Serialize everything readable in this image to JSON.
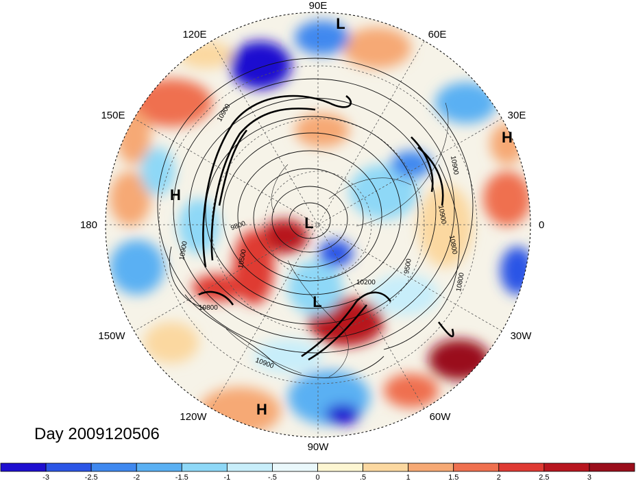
{
  "map": {
    "projection": "north polar stereographic",
    "longitude_labels": [
      "90E",
      "60E",
      "30E",
      "0",
      "30W",
      "60W",
      "90W",
      "120W",
      "150W",
      "180",
      "150E",
      "120E"
    ],
    "pressure_centers": [
      {
        "label": "L",
        "name": "low-north-90E"
      },
      {
        "label": "H",
        "name": "high-30E"
      },
      {
        "label": "H",
        "name": "high-near-180"
      },
      {
        "label": "L",
        "name": "low-pole"
      },
      {
        "label": "L",
        "name": "low-hudson-bay"
      },
      {
        "label": "H",
        "name": "high-120W"
      }
    ],
    "contour_labels": [
      "10900",
      "10800",
      "9800",
      "10500",
      "10200",
      "9500",
      "10800",
      "10800",
      "10900",
      "10900",
      "10900",
      "10900"
    ]
  },
  "title": "Day 2009120506",
  "colorbar": {
    "tick_labels": [
      "-3",
      "-2.5",
      "-2",
      "-1.5",
      "-1",
      "-.5",
      "0",
      ".5",
      "1",
      "1.5",
      "2",
      "2.5",
      "3"
    ],
    "colors": [
      "#1e0fd0",
      "#2b55e6",
      "#3f88ef",
      "#5ab0f3",
      "#8ed8f7",
      "#c8eefa",
      "#eaf8fb",
      "#fdf6d2",
      "#fbd8a0",
      "#f6a974",
      "#ef704f",
      "#df3a33",
      "#b8161f",
      "#9a0e1b"
    ]
  }
}
